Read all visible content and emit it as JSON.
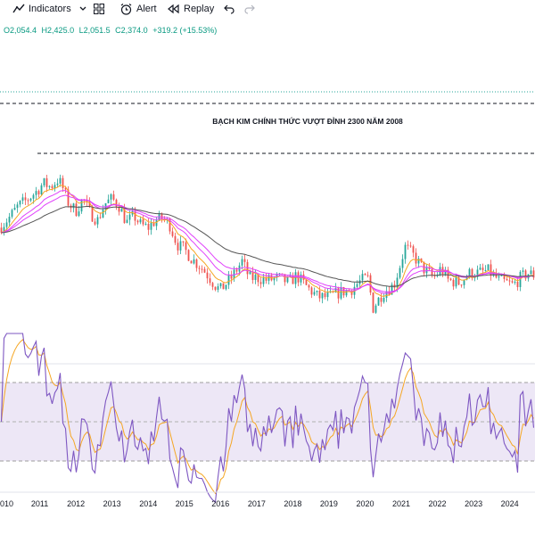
{
  "toolbar": {
    "indicators_label": "Indicators",
    "alert_label": "Alert",
    "replay_label": "Replay",
    "icons": [
      "indicators-icon",
      "chevron-down-icon",
      "templates-icon",
      "alert-icon",
      "replay-icon",
      "undo-icon",
      "redo-icon"
    ]
  },
  "ohlc": {
    "open": "O2,054.4",
    "high": "H2,425.0",
    "low": "L2,051.5",
    "close": "C2,374.0",
    "change": "+319.2 (+15.53%)"
  },
  "chart_data": {
    "type": "candlestick",
    "annotation": "BẠCH KIM CHÍNH THỨC VƯỢT ĐỈNH 2300 NĂM 2008",
    "x_labels": [
      "010",
      "2011",
      "2012",
      "2013",
      "2014",
      "2015",
      "2016",
      "2017",
      "2018",
      "2019",
      "2020",
      "2021",
      "2022",
      "2023",
      "2024"
    ],
    "x_range": [
      2009.9,
      2024.7
    ],
    "price_pane": {
      "y_range": [
        600,
        2000
      ],
      "price_approx": [
        [
          2009.9,
          1380
        ],
        [
          2010.2,
          1480
        ],
        [
          2010.4,
          1560
        ],
        [
          2010.6,
          1600
        ],
        [
          2010.9,
          1680
        ],
        [
          2011.1,
          1750
        ],
        [
          2011.3,
          1720
        ],
        [
          2011.5,
          1780
        ],
        [
          2011.6,
          1740
        ],
        [
          2011.8,
          1580
        ],
        [
          2012.0,
          1520
        ],
        [
          2012.2,
          1620
        ],
        [
          2012.4,
          1500
        ],
        [
          2012.6,
          1440
        ],
        [
          2012.8,
          1580
        ],
        [
          2013.0,
          1620
        ],
        [
          2013.2,
          1560
        ],
        [
          2013.4,
          1420
        ],
        [
          2013.6,
          1480
        ],
        [
          2013.8,
          1400
        ],
        [
          2014.0,
          1380
        ],
        [
          2014.2,
          1440
        ],
        [
          2014.4,
          1460
        ],
        [
          2014.6,
          1400
        ],
        [
          2014.8,
          1240
        ],
        [
          2015.0,
          1200
        ],
        [
          2015.2,
          1120
        ],
        [
          2015.5,
          1040
        ],
        [
          2015.7,
          960
        ],
        [
          2015.9,
          880
        ],
        [
          2016.0,
          860
        ],
        [
          2016.3,
          960
        ],
        [
          2016.6,
          1100
        ],
        [
          2016.8,
          960
        ],
        [
          2017.0,
          960
        ],
        [
          2017.3,
          940
        ],
        [
          2017.6,
          960
        ],
        [
          2017.9,
          920
        ],
        [
          2018.1,
          980
        ],
        [
          2018.4,
          880
        ],
        [
          2018.7,
          800
        ],
        [
          2019.0,
          800
        ],
        [
          2019.3,
          840
        ],
        [
          2019.6,
          860
        ],
        [
          2019.9,
          940
        ],
        [
          2020.1,
          960
        ],
        [
          2020.2,
          700
        ],
        [
          2020.5,
          840
        ],
        [
          2020.8,
          900
        ],
        [
          2021.0,
          1100
        ],
        [
          2021.1,
          1220
        ],
        [
          2021.3,
          1160
        ],
        [
          2021.6,
          1040
        ],
        [
          2021.9,
          960
        ],
        [
          2022.1,
          1040
        ],
        [
          2022.3,
          940
        ],
        [
          2022.6,
          920
        ],
        [
          2022.9,
          1000
        ],
        [
          2023.1,
          1000
        ],
        [
          2023.4,
          1020
        ],
        [
          2023.7,
          940
        ],
        [
          2023.9,
          920
        ],
        [
          2024.1,
          900
        ],
        [
          2024.3,
          960
        ],
        [
          2024.5,
          1000
        ],
        [
          2024.7,
          980
        ]
      ],
      "dashed_levels": [
        2300,
        1720
      ],
      "resistance_level_color": "#26a69a"
    },
    "indicator_pane": {
      "y_range": [
        0,
        100
      ],
      "band": [
        30,
        70
      ],
      "midline": 50
    },
    "colors": {
      "up": "#26a69a",
      "down": "#ef5350",
      "ma_fast": "#f5a623",
      "ma_mid": "#e040fb",
      "ma_slow": "#555555",
      "oscillator": "#7e57c2",
      "signal": "#f5a623",
      "band_fill": "#ede7f6"
    }
  }
}
